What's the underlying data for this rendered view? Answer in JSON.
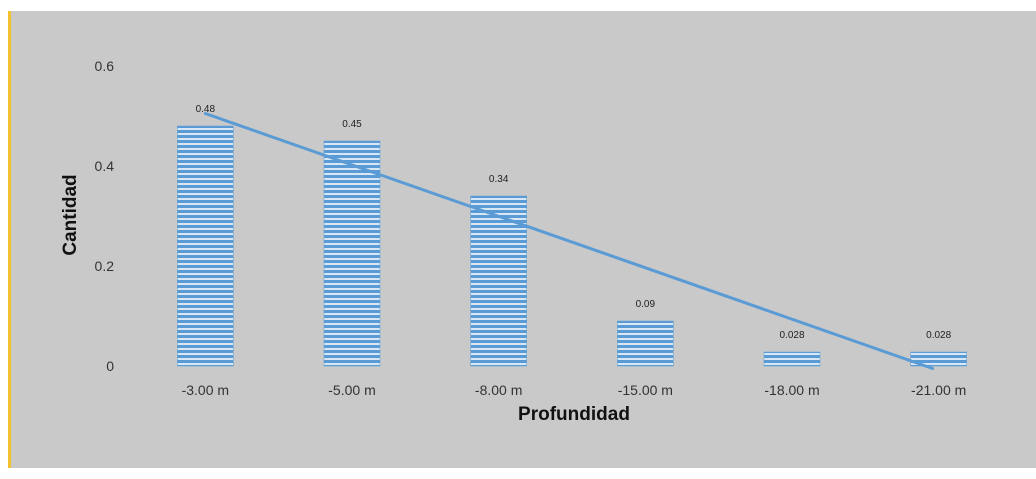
{
  "chart_data": {
    "type": "bar",
    "categories": [
      "-3.00 m",
      "-5.00 m",
      "-8.00 m",
      "-15.00 m",
      "-18.00 m",
      "-21.00 m"
    ],
    "values": [
      0.48,
      0.45,
      0.34,
      0.09,
      0.028,
      0.028
    ],
    "data_labels": [
      "0.48",
      "0.45",
      "0.34",
      "0.09",
      "0.028",
      "0.028"
    ],
    "trendline": {
      "type": "linear",
      "start_value": 0.505,
      "end_value": -0.005
    },
    "xlabel": "Profundidad",
    "ylabel": "Cantidad",
    "ylim": [
      0,
      0.6
    ],
    "yticks": [
      "0",
      "0.2",
      "0.4",
      "0.6"
    ],
    "grid": false,
    "legend": "none",
    "colors": {
      "background": "#c9c9c9",
      "bar": "#5b9bd5",
      "bar_stripe_light": "#cfe2f5",
      "trendline": "#5b9bd5",
      "left_accent": "#f2c12e"
    }
  }
}
